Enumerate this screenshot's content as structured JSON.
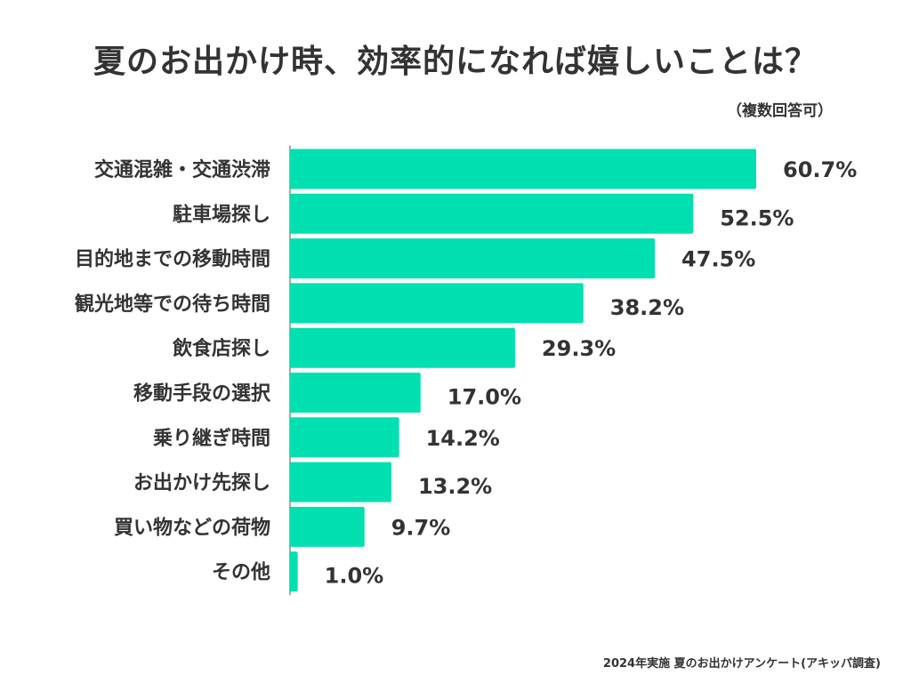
{
  "chart_data": {
    "type": "bar",
    "orientation": "horizontal",
    "title": "夏のお出かけ時、効率的になれば嬉しいことは？",
    "subtitle": "（複数回答可）",
    "footnote": "2024年実施 夏のお出かけアンケート(アキッパ調査)",
    "categories": [
      "交通混雑・交通渋滞",
      "駐車場探し",
      "目的地までの移動時間",
      "観光地等での待ち時間",
      "飲食店探し",
      "移動手段の選択",
      "乗り継ぎ時間",
      "お出かけ先探し",
      "買い物などの荷物",
      "その他"
    ],
    "values": [
      60.7,
      52.5,
      47.5,
      38.2,
      29.3,
      17.0,
      14.2,
      13.2,
      9.7,
      1.0
    ],
    "value_labels": [
      "60.7%",
      "52.5%",
      "47.5%",
      "38.2%",
      "29.3%",
      "17.0%",
      "14.2%",
      "13.2%",
      "9.7%",
      "1.0%"
    ],
    "unit": "%",
    "xlim": [
      0,
      60.7
    ],
    "bar_color": "#00E0B0",
    "text_color": "#333333"
  }
}
